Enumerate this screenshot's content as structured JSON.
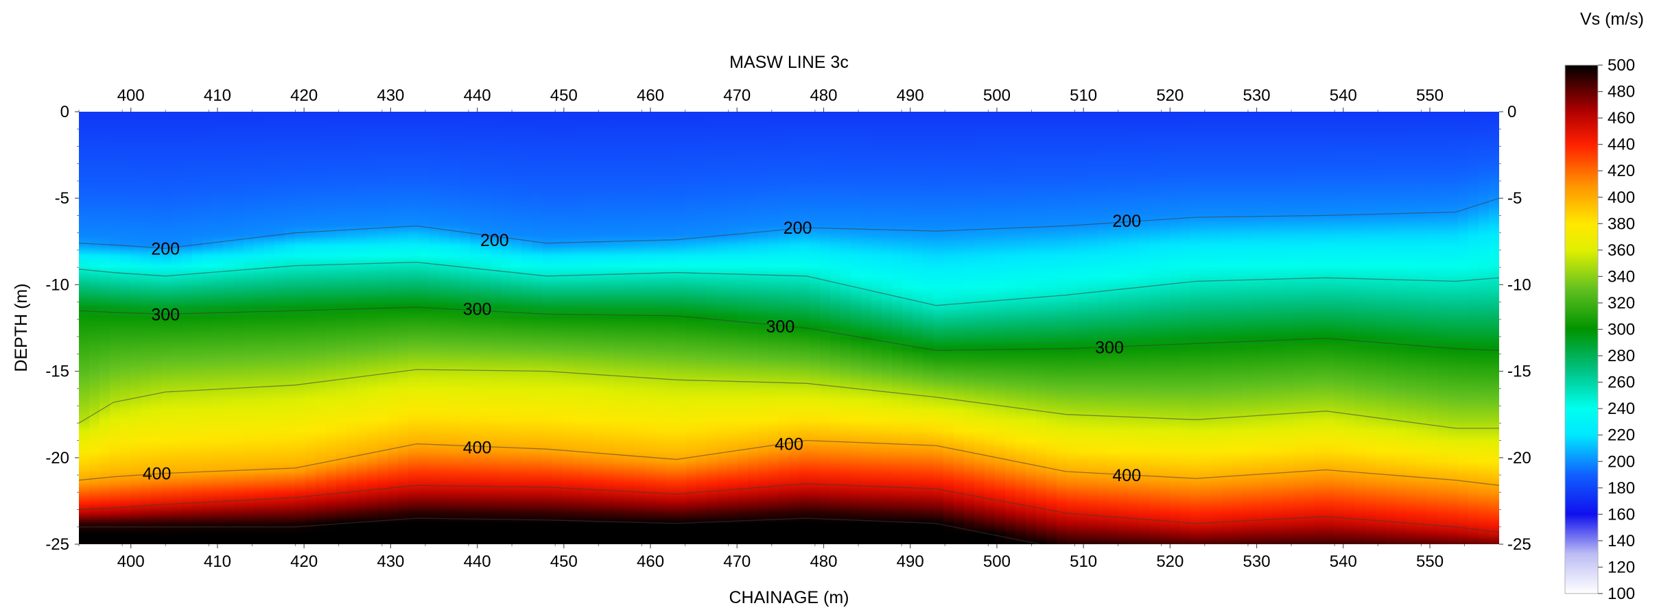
{
  "chart_data": {
    "type": "heatmap",
    "title": "MASW LINE 3c",
    "xlabel": "CHAINAGE (m)",
    "ylabel": "DEPTH (m)",
    "colorbar_label": "Vs (m/s)",
    "xlim": [
      394,
      558
    ],
    "ylim": [
      -25,
      0
    ],
    "x_ticks": [
      400,
      410,
      420,
      430,
      440,
      450,
      460,
      470,
      480,
      490,
      500,
      510,
      520,
      530,
      540,
      550
    ],
    "x_tick_labels": [
      "400",
      "410",
      "420",
      "430",
      "440",
      "450",
      "460",
      "470",
      "480",
      "490",
      "500",
      "510",
      "520",
      "530",
      "540",
      "550"
    ],
    "y_ticks": [
      0,
      -5,
      -10,
      -15,
      -20,
      -25
    ],
    "y_tick_labels": [
      "0",
      "-5",
      "-10",
      "-15",
      "-20",
      "-25"
    ],
    "colorbar_ticks": [
      500,
      480,
      460,
      440,
      420,
      400,
      380,
      360,
      340,
      320,
      300,
      280,
      260,
      240,
      220,
      200,
      180,
      160,
      140,
      120,
      100
    ],
    "colorbar_tick_labels": [
      "500",
      "480",
      "460",
      "440",
      "420",
      "400",
      "380",
      "360",
      "340",
      "320",
      "300",
      "280",
      "260",
      "240",
      "220",
      "200",
      "180",
      "160",
      "140",
      "120",
      "100"
    ],
    "colormap": [
      {
        "v": 100,
        "color": "#ffffff"
      },
      {
        "v": 130,
        "color": "#bcbcf5"
      },
      {
        "v": 160,
        "color": "#1010ee"
      },
      {
        "v": 190,
        "color": "#1060ff"
      },
      {
        "v": 220,
        "color": "#00e8ff"
      },
      {
        "v": 240,
        "color": "#00ffee"
      },
      {
        "v": 270,
        "color": "#00c080"
      },
      {
        "v": 300,
        "color": "#009400"
      },
      {
        "v": 330,
        "color": "#60c020"
      },
      {
        "v": 360,
        "color": "#e0f000"
      },
      {
        "v": 380,
        "color": "#ffe800"
      },
      {
        "v": 410,
        "color": "#ff9000"
      },
      {
        "v": 440,
        "color": "#ff2000"
      },
      {
        "v": 465,
        "color": "#b00000"
      },
      {
        "v": 500,
        "color": "#000000"
      }
    ],
    "profile_x": [
      394,
      398,
      404,
      419,
      433,
      448,
      463,
      478,
      493,
      508,
      523,
      538,
      553,
      558
    ],
    "velocity_model": {
      "surface_velocity": 175,
      "layer_velocities": [
        200,
        250,
        300,
        350,
        400,
        450,
        500
      ],
      "interface_depths": [
        [
          -7.6,
          -7.7,
          -7.9,
          -7.0,
          -6.6,
          -7.6,
          -7.4,
          -6.7,
          -6.9,
          -6.6,
          -6.1,
          -6.0,
          -5.8,
          -5.0
        ],
        [
          -9.1,
          -9.3,
          -9.5,
          -8.9,
          -8.7,
          -9.5,
          -9.3,
          -9.5,
          -11.2,
          -10.6,
          -9.8,
          -9.6,
          -9.8,
          -9.6
        ],
        [
          -11.5,
          -11.6,
          -11.7,
          -11.5,
          -11.3,
          -11.7,
          -11.8,
          -12.5,
          -13.8,
          -13.7,
          -13.4,
          -13.1,
          -13.7,
          -13.8
        ],
        [
          -18.0,
          -16.8,
          -16.2,
          -15.8,
          -14.9,
          -15.0,
          -15.5,
          -15.7,
          -16.5,
          -17.5,
          -17.8,
          -17.3,
          -18.3,
          -18.3
        ],
        [
          -21.3,
          -21.1,
          -20.9,
          -20.6,
          -19.2,
          -19.5,
          -20.1,
          -19.0,
          -19.3,
          -20.8,
          -21.2,
          -20.7,
          -21.3,
          -21.6
        ],
        [
          -23.0,
          -22.9,
          -22.7,
          -22.3,
          -21.6,
          -21.7,
          -22.1,
          -21.5,
          -21.8,
          -23.2,
          -23.8,
          -23.4,
          -24.0,
          -24.3
        ],
        [
          -24.0,
          -24.0,
          -24.0,
          -24.0,
          -23.5,
          -23.6,
          -23.8,
          -23.5,
          -23.8,
          -25.3,
          -25.5,
          -25.5,
          -25.6,
          -25.6
        ]
      ]
    },
    "contour_labels": [
      {
        "text": "200",
        "x": 404,
        "y": -7.9
      },
      {
        "text": "200",
        "x": 442,
        "y": -7.4
      },
      {
        "text": "200",
        "x": 477,
        "y": -6.7
      },
      {
        "text": "200",
        "x": 515,
        "y": -6.3
      },
      {
        "text": "300",
        "x": 404,
        "y": -11.7
      },
      {
        "text": "300",
        "x": 440,
        "y": -11.4
      },
      {
        "text": "300",
        "x": 475,
        "y": -12.4
      },
      {
        "text": "300",
        "x": 513,
        "y": -13.6
      },
      {
        "text": "400",
        "x": 403,
        "y": -20.9
      },
      {
        "text": "400",
        "x": 440,
        "y": -19.4
      },
      {
        "text": "400",
        "x": 476,
        "y": -19.2
      },
      {
        "text": "400",
        "x": 515,
        "y": -21.0
      }
    ]
  }
}
